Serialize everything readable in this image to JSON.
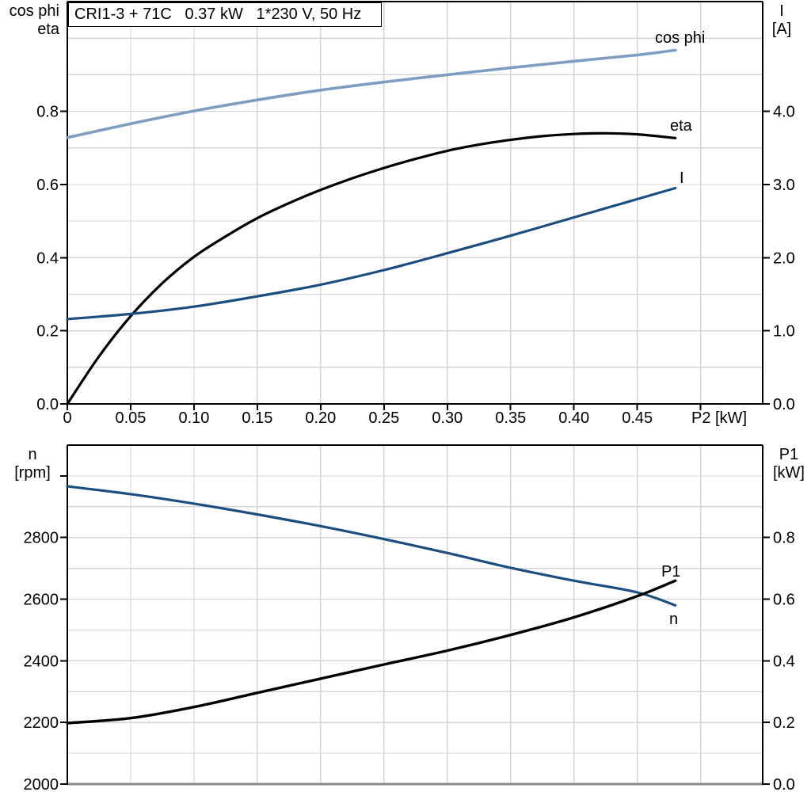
{
  "title_box": {
    "text": "CRI1-3 + 71C   0.37 kW   1*230 V, 50 Hz"
  },
  "axis_titles": {
    "top_left": {
      "line1": "cos phi",
      "line2": "eta"
    },
    "top_right": {
      "line1": "I",
      "line2": "[A]"
    },
    "bottom_left": {
      "line1": "n",
      "line2": "[rpm]"
    },
    "bottom_right": {
      "line1": "P1",
      "line2": "[kW]"
    }
  },
  "colors": {
    "grid": "#d4d4d4",
    "axis": "#000000",
    "bottom_axis_gray": "#8a8a8a",
    "dark_blue": "#1b4e80",
    "light_blue": "#7e9dc1",
    "black": "#000000"
  },
  "chart_data": [
    {
      "type": "line",
      "title": "CRI1-3 + 71C   0.37 kW   1*230 V, 50 Hz",
      "xlabel": "P2 [kW]",
      "xlim": [
        0,
        0.549
      ],
      "x_grid_step": 0.05,
      "x_ticks": {
        "values": [
          0,
          0.05,
          0.1,
          0.15,
          0.2,
          0.25,
          0.3,
          0.35,
          0.4,
          0.45
        ],
        "labels": [
          "0",
          "0.05",
          "0.10",
          "0.15",
          "0.20",
          "0.25",
          "0.30",
          "0.35",
          "0.40",
          "0.45"
        ]
      },
      "x_extra_tick_values": [
        0.5
      ],
      "left_axis": {
        "title": "cos phi / eta",
        "lim": [
          0,
          1.1
        ],
        "grid_step": 0.1,
        "ticks": {
          "values": [
            0,
            0.2,
            0.4,
            0.6,
            0.8
          ],
          "labels": [
            "0.0",
            "0.2",
            "0.4",
            "0.6",
            "0.8"
          ]
        },
        "extra_tick_values": []
      },
      "right_axis": {
        "title": "I [A]",
        "lim": [
          0,
          5.5
        ],
        "ticks": {
          "values": [
            0,
            1,
            2,
            3,
            4
          ],
          "labels": [
            "0.0",
            "1.0",
            "2.0",
            "3.0",
            "4.0"
          ]
        },
        "extra_tick_values": []
      },
      "series": [
        {
          "name": "cos phi",
          "axis": "left",
          "color": "#7e9dc1",
          "width": 3.6,
          "x": [
            0,
            0.05,
            0.1,
            0.15,
            0.2,
            0.25,
            0.3,
            0.35,
            0.4,
            0.45,
            0.48
          ],
          "y": [
            0.728,
            0.766,
            0.801,
            0.831,
            0.858,
            0.88,
            0.9,
            0.919,
            0.937,
            0.954,
            0.967
          ]
        },
        {
          "name": "eta",
          "axis": "left",
          "color": "#000000",
          "width": 3.2,
          "x": [
            0,
            0.025,
            0.05,
            0.075,
            0.1,
            0.125,
            0.15,
            0.175,
            0.2,
            0.225,
            0.25,
            0.275,
            0.3,
            0.325,
            0.35,
            0.375,
            0.4,
            0.425,
            0.45,
            0.48
          ],
          "y": [
            0,
            0.13,
            0.24,
            0.33,
            0.402,
            0.458,
            0.508,
            0.549,
            0.585,
            0.617,
            0.645,
            0.67,
            0.692,
            0.709,
            0.722,
            0.732,
            0.738,
            0.74,
            0.737,
            0.727
          ]
        },
        {
          "name": "I",
          "axis": "right",
          "color": "#1b4e80",
          "width": 3.2,
          "x": [
            0,
            0.05,
            0.1,
            0.15,
            0.2,
            0.25,
            0.3,
            0.35,
            0.4,
            0.45,
            0.48
          ],
          "y": [
            1.16,
            1.23,
            1.33,
            1.47,
            1.63,
            1.83,
            2.06,
            2.3,
            2.55,
            2.8,
            2.95
          ]
        }
      ]
    },
    {
      "type": "line",
      "title": "",
      "xlabel": "",
      "xlim": [
        0,
        0.549
      ],
      "x_grid_step": 0.05,
      "x_ticks": {
        "values": [],
        "labels": []
      },
      "x_extra_tick_values": [],
      "left_axis": {
        "title": "n [rpm]",
        "lim": [
          2000,
          3100
        ],
        "grid_step": 100,
        "ticks": {
          "values": [
            2000,
            2200,
            2400,
            2600,
            2800
          ],
          "labels": [
            "2000",
            "2200",
            "2400",
            "2600",
            "2800"
          ]
        },
        "extra_tick_values": [
          3000
        ]
      },
      "right_axis": {
        "title": "P1 [kW]",
        "lim": [
          0,
          1.1
        ],
        "ticks": {
          "values": [
            0,
            0.2,
            0.4,
            0.6,
            0.8
          ],
          "labels": [
            "0.0",
            "0.2",
            "0.4",
            "0.6",
            "0.8"
          ]
        },
        "extra_tick_values": []
      },
      "series": [
        {
          "name": "n",
          "axis": "left",
          "color": "#1b4e80",
          "width": 3.2,
          "x": [
            0,
            0.05,
            0.1,
            0.15,
            0.2,
            0.25,
            0.3,
            0.35,
            0.4,
            0.45,
            0.48
          ],
          "y": [
            2966,
            2941,
            2910,
            2875,
            2837,
            2795,
            2750,
            2702,
            2660,
            2622,
            2580
          ]
        },
        {
          "name": "P1",
          "axis": "right",
          "color": "#000000",
          "width": 3.4,
          "x": [
            0,
            0.05,
            0.1,
            0.15,
            0.2,
            0.25,
            0.3,
            0.35,
            0.4,
            0.45,
            0.48
          ],
          "y": [
            0.198,
            0.214,
            0.25,
            0.296,
            0.342,
            0.388,
            0.433,
            0.484,
            0.541,
            0.61,
            0.66
          ]
        }
      ]
    }
  ]
}
